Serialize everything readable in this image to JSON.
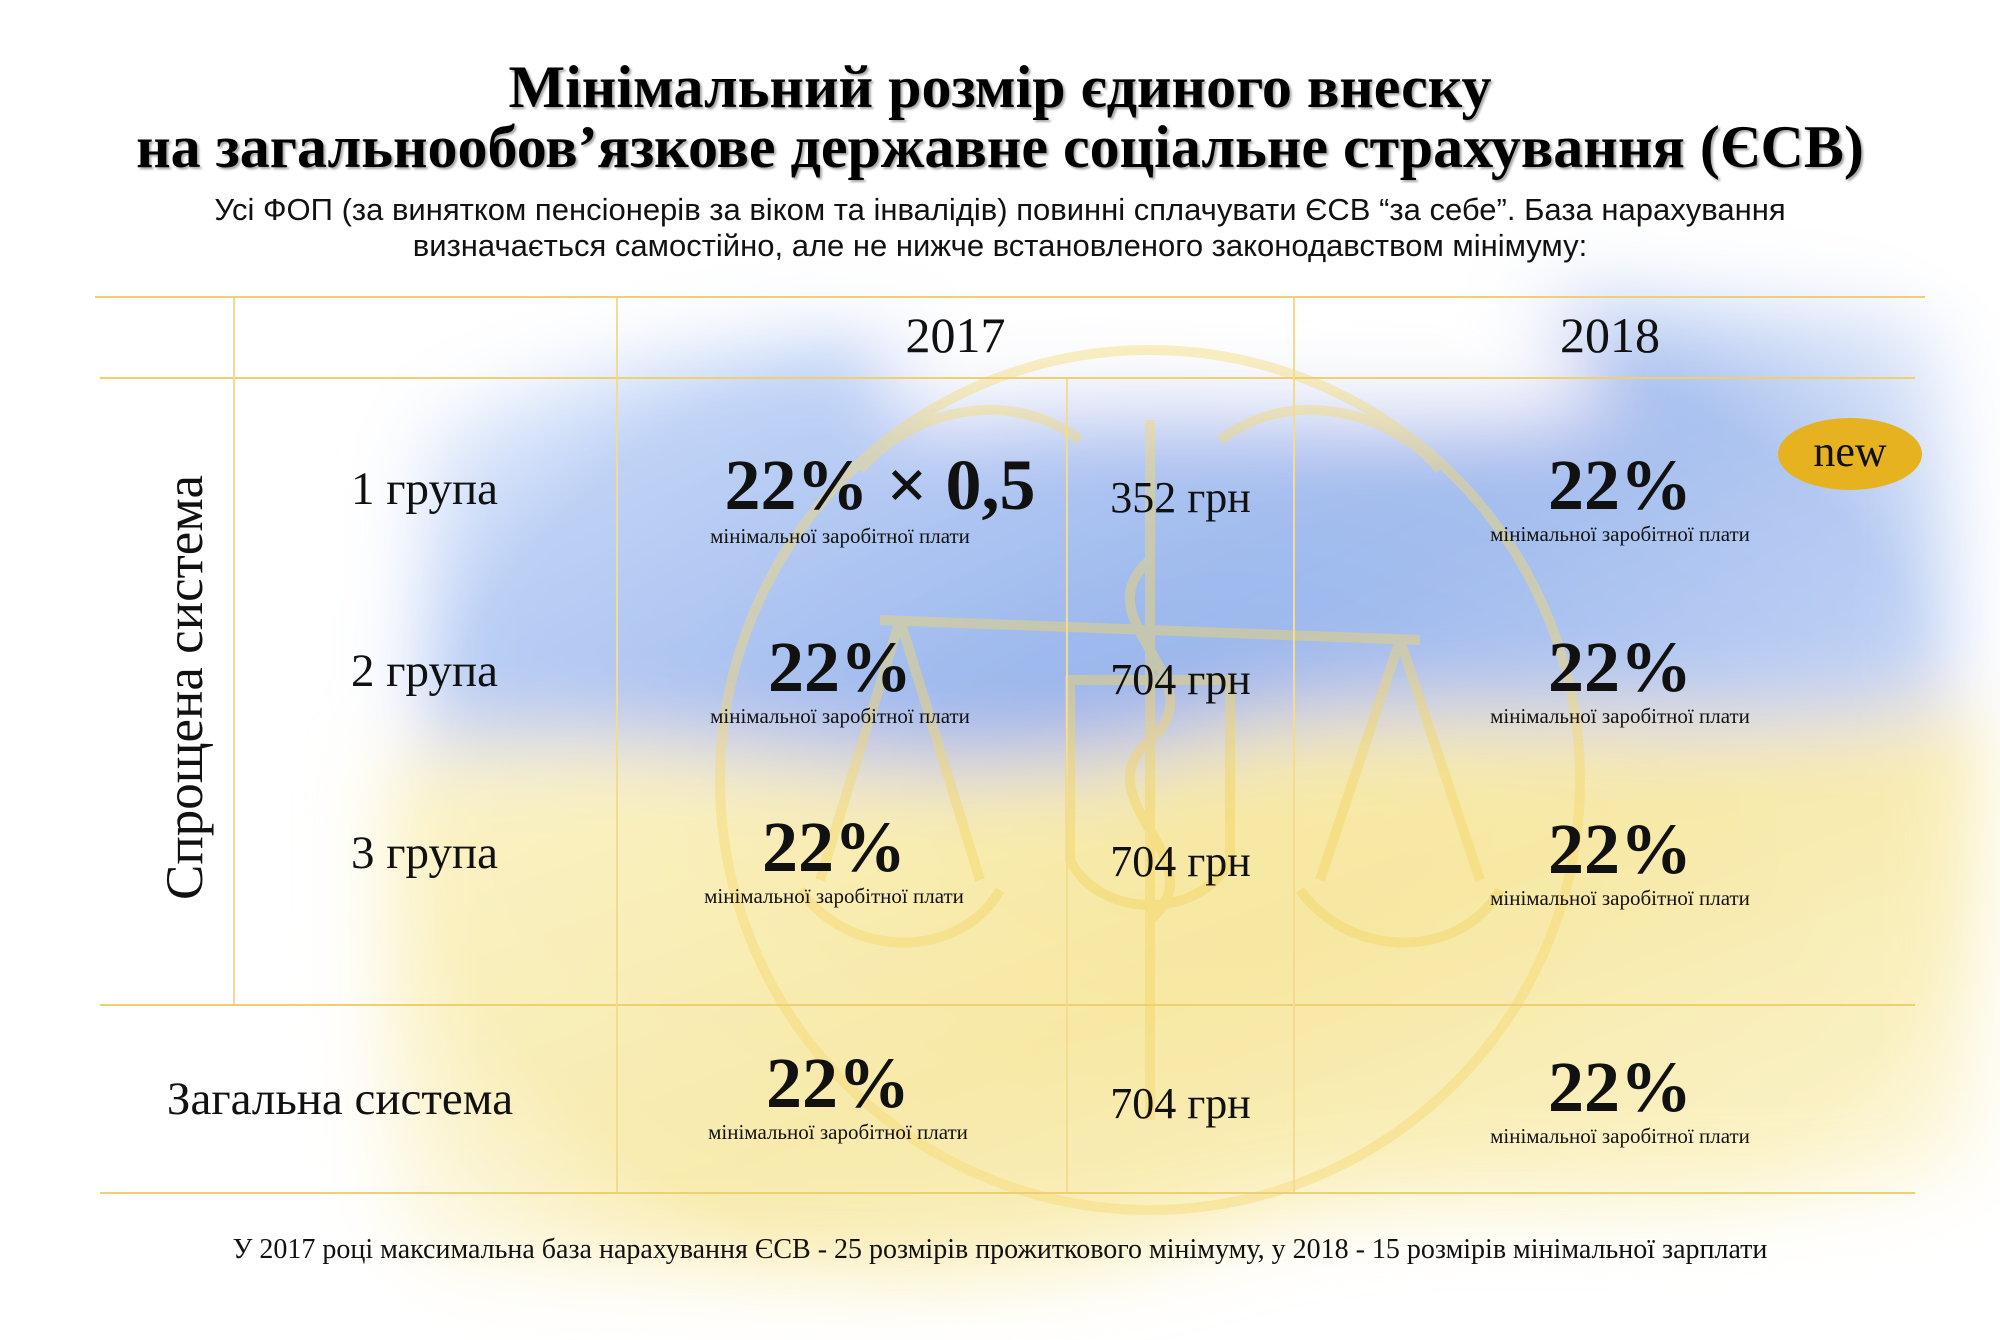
{
  "title": {
    "line1": "Мінімальний розмір єдиного внеску",
    "line2": "на загальнообов’язкове державне соціальне страхування (ЄСВ)"
  },
  "subtitle": {
    "line1": "Усі ФОП (за винятком пенсіонерів за віком та інвалідів) повинні сплачувати ЄСВ “за себе”. База нарахування",
    "line2": "визначається самостійно, але не нижче встановленого законодавством мінімуму:"
  },
  "table": {
    "years": [
      "2017",
      "2018"
    ],
    "simplified_label": "Спрощена система",
    "general_label": "Загальна система",
    "minwage_label": "мінімальної заробітної плати",
    "rows": [
      {
        "group": "1 група",
        "rate2017": "22% × 0,5",
        "amount2017": "352 грн",
        "rate2018": "22%"
      },
      {
        "group": "2 група",
        "rate2017": "22%",
        "amount2017": "704 грн",
        "rate2018": "22%"
      },
      {
        "group": "3 група",
        "rate2017": "22%",
        "amount2017": "704 грн",
        "rate2018": "22%"
      }
    ],
    "general_row": {
      "rate2017": "22%",
      "amount2017": "704 грн",
      "rate2018": "22%"
    }
  },
  "badge": "new",
  "footer": "У 2017 році максимальна база нарахування ЄСВ - 25 розмірів прожиткового мінімуму, у 2018 - 15 розмірів мінімальної зарплати",
  "colors": {
    "line": "#f0cf72",
    "badge": "#e6b21f",
    "flag_blue": "#3a6fd8",
    "flag_yellow": "#f2d64b"
  }
}
